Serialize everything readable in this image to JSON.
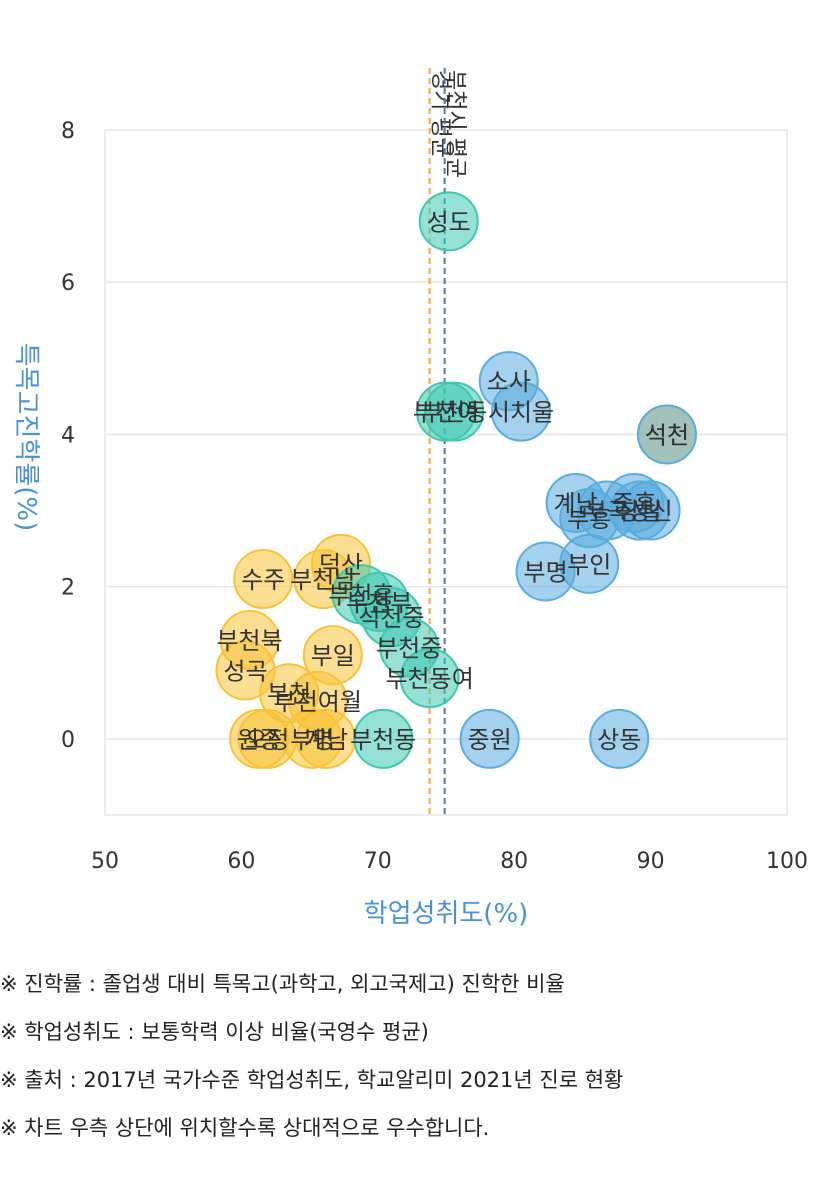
{
  "chart_data": {
    "type": "scatter",
    "xlabel": "학업성취도(%)",
    "ylabel": "특목고진학률(%)",
    "xlim": [
      50,
      100
    ],
    "ylim": [
      -1,
      8
    ],
    "x_ticks": [
      "50",
      "60",
      "70",
      "80",
      "90",
      "100"
    ],
    "y_ticks": [
      "0",
      "2",
      "4",
      "6",
      "8"
    ],
    "grid": true,
    "reference_lines": [
      {
        "label": "경기 평균",
        "x": 73.8,
        "color": "#f4a640"
      },
      {
        "label": "부천시 평균",
        "x": 74.9,
        "color": "#4a78a8"
      }
    ],
    "series": [
      {
        "color": "#f7c236",
        "points": [
          {
            "label": "수주",
            "x": 61.6,
            "y": 2.1
          },
          {
            "label": "부천북",
            "x": 60.6,
            "y": 1.3
          },
          {
            "label": "석천",
            "x": 91.2,
            "y": 4.0
          }
        ]
      },
      {
        "color": "#f7c236",
        "points": [
          {
            "label": "덕산",
            "x": 67.3,
            "y": 2.3
          },
          {
            "label": "부천남",
            "x": 66.0,
            "y": 2.1
          },
          {
            "label": "부일",
            "x": 66.7,
            "y": 1.1
          },
          {
            "label": "성곡",
            "x": 60.3,
            "y": 0.9
          },
          {
            "label": "부천여월",
            "x": 65.6,
            "y": 0.5
          },
          {
            "label": "부천",
            "x": 63.5,
            "y": 0.6
          },
          {
            "label": "원종",
            "x": 61.3,
            "y": 0.0
          },
          {
            "label": "오정",
            "x": 61.9,
            "y": 0.0
          },
          {
            "label": "부명",
            "x": 65.2,
            "y": 0.0
          },
          {
            "label": "계남",
            "x": 66.2,
            "y": 0.0
          }
        ]
      },
      {
        "color": "#3ec8b0",
        "points": [
          {
            "label": "성도",
            "x": 75.2,
            "y": 6.8
          },
          {
            "label": "부천동",
            "x": 75.6,
            "y": 4.3
          },
          {
            "label": "부천여",
            "x": 75.0,
            "y": 4.3
          },
          {
            "label": "부천흥",
            "x": 68.8,
            "y": 1.9
          },
          {
            "label": "부천부",
            "x": 70.1,
            "y": 1.8
          },
          {
            "label": "석천중",
            "x": 71.0,
            "y": 1.6
          },
          {
            "label": "부천중",
            "x": 72.3,
            "y": 1.2
          },
          {
            "label": "부천동여",
            "x": 73.8,
            "y": 0.8
          },
          {
            "label": "부천동",
            "x": 70.4,
            "y": 0.0
          }
        ]
      },
      {
        "color": "#5aacde",
        "points": [
          {
            "label": "소사",
            "x": 79.6,
            "y": 4.7
          },
          {
            "label": "시치울",
            "x": 80.5,
            "y": 4.3
          },
          {
            "label": "석천",
            "x": 91.2,
            "y": 4.0
          },
          {
            "label": "계남",
            "x": 84.5,
            "y": 3.1
          },
          {
            "label": "부곡",
            "x": 86.8,
            "y": 3.0
          },
          {
            "label": "상일",
            "x": 89.2,
            "y": 3.0
          },
          {
            "label": "중흥",
            "x": 88.8,
            "y": 3.1
          },
          {
            "label": "부흥",
            "x": 85.5,
            "y": 2.9
          },
          {
            "label": "상신",
            "x": 90.0,
            "y": 3.0
          },
          {
            "label": "부인",
            "x": 85.5,
            "y": 2.3
          },
          {
            "label": "부명",
            "x": 82.3,
            "y": 2.2
          },
          {
            "label": "중원",
            "x": 78.2,
            "y": 0.0
          },
          {
            "label": "상동",
            "x": 87.7,
            "y": 0.0
          }
        ]
      }
    ]
  },
  "notes": [
    "※ 진학률 : 졸업생 대비 특목고(과학고, 외고국제고) 진학한 비율",
    "※ 학업성취도 : 보통학력 이상 비율(국영수 평균)",
    "※ 출처 : 2017년 국가수준 학업성취도, 학교알리미 2021년 진로 현황",
    "※ 차트 우측 상단에 위치할수록 상대적으로 우수합니다."
  ]
}
